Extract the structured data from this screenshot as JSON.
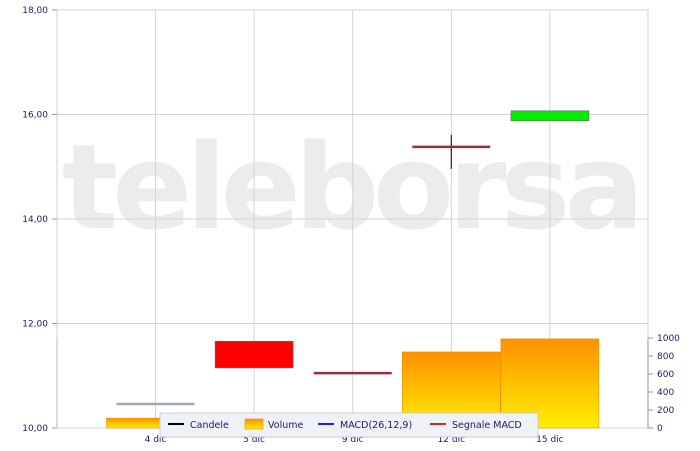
{
  "watermark": "teleborsa",
  "chart_data": {
    "type": "candlestick",
    "categories": [
      "4 dic",
      "5 dic",
      "9 dic",
      "12 dic",
      "15 dic"
    ],
    "price_axis": {
      "ylim": [
        10,
        18
      ],
      "ticks": [
        "10,00",
        "12,00",
        "14,00",
        "16,00",
        "18,00"
      ],
      "tick_values": [
        10,
        12,
        14,
        16,
        18
      ]
    },
    "volume_axis": {
      "ylim": [
        0,
        1000
      ],
      "ticks": [
        "0",
        "200",
        "400",
        "600",
        "800",
        "1000"
      ],
      "tick_values": [
        0,
        200,
        400,
        600,
        800,
        1000
      ]
    },
    "candles": [
      {
        "date": "4 dic",
        "open": 10.46,
        "close": 10.46,
        "high": 10.46,
        "low": 10.46,
        "color": "#a0a8b4"
      },
      {
        "date": "5 dic",
        "open": 11.66,
        "close": 11.15,
        "high": 11.66,
        "low": 11.15,
        "color": "#ff0000"
      },
      {
        "date": "9 dic",
        "open": 11.05,
        "close": 11.05,
        "high": 11.05,
        "low": 11.05,
        "color": "#9b2c3a"
      },
      {
        "date": "12 dic",
        "open": 15.38,
        "close": 15.38,
        "high": 15.61,
        "low": 14.96,
        "color": "#9b2c3a"
      },
      {
        "date": "15 dic",
        "open": 15.88,
        "close": 16.07,
        "high": 16.07,
        "low": 15.88,
        "color": "#00ee00"
      }
    ],
    "volume": [
      110,
      0,
      0,
      845,
      990
    ],
    "grid": true,
    "legend": {
      "placement": "bottom",
      "items": [
        {
          "label": "Candele",
          "color": "#000000"
        },
        {
          "label": "Volume",
          "color": "#ffa500"
        },
        {
          "label": "MACD(26,12,9)",
          "color": "#1a1aff"
        },
        {
          "label": "Segnale MACD",
          "color": "#e02020"
        }
      ]
    }
  }
}
